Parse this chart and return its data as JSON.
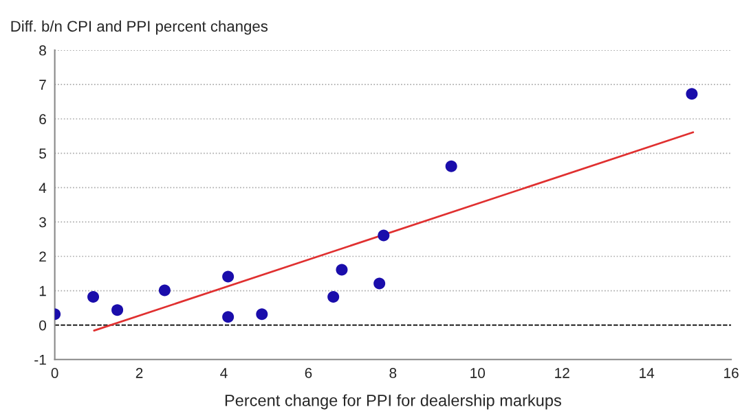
{
  "chart_data": {
    "type": "scatter",
    "xlabel": "Percent change for PPI for dealership markups",
    "ylabel": "Diff. b/n CPI and PPI percent changes",
    "series": [
      {
        "color": "#1a0dab",
        "marker": "circle",
        "x": [
          0,
          0.91,
          1.48,
          2.6,
          4.1,
          4.1,
          4.9,
          6.59,
          6.79,
          7.68,
          7.78,
          9.38,
          15.07
        ],
        "values": [
          0.32,
          0.82,
          0.44,
          1.01,
          1.41,
          0.24,
          0.32,
          0.82,
          1.61,
          1.21,
          2.61,
          4.62,
          6.73
        ]
      },
      {
        "type": "line",
        "color": "#e03030",
        "marker": "none",
        "line_style": "solid",
        "x": [
          0.93,
          15.1
        ],
        "values": [
          -0.16,
          5.61
        ]
      }
    ],
    "ref_lines": [
      {
        "axis": "y",
        "value": 0,
        "color": "#000000",
        "line_style": "dashed"
      }
    ],
    "xlim": [
      0,
      16
    ],
    "ylim": [
      -1,
      8
    ],
    "xticks": [
      0,
      2,
      4,
      6,
      8,
      10,
      12,
      14,
      16
    ],
    "yticks": [
      -1,
      0,
      1,
      2,
      3,
      4,
      5,
      6,
      7,
      8
    ],
    "grid": "y"
  }
}
